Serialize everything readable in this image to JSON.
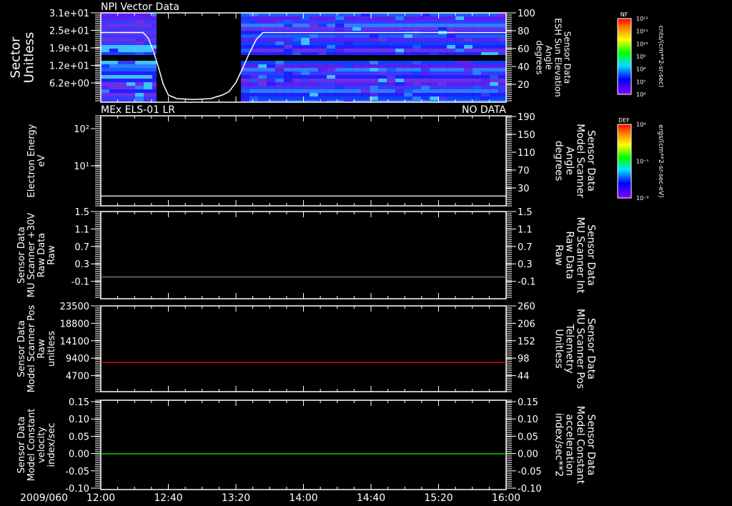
{
  "chart_data": [
    {
      "type": "heatmap",
      "title": "NPI Vector Data",
      "ylabel": [
        "Sector",
        "Unitless"
      ],
      "yticks": [
        "3.1e+01",
        "2.5e+01",
        "1.9e+01",
        "1.2e+01",
        "6.2e+00"
      ],
      "y2label": [
        "Sensor Data",
        "ESH Sun Elevation",
        "Angle",
        "degrees"
      ],
      "y2ticks": [
        100,
        80,
        60,
        40,
        20
      ],
      "y2lim": [
        0,
        100
      ],
      "data_intervals_min": [
        [
          0,
          33
        ],
        [
          83,
          240
        ]
      ],
      "line_series": {
        "name": "ESH Sun Elevation Angle",
        "color": "#ffffff",
        "x_min": [
          0,
          25,
          28,
          31,
          34,
          37,
          40,
          45,
          55,
          65,
          72,
          76,
          80,
          84,
          88,
          92,
          96,
          240
        ],
        "y": [
          78,
          78,
          72,
          58,
          40,
          20,
          8,
          4,
          3,
          4,
          8,
          12,
          22,
          38,
          55,
          70,
          78,
          78
        ]
      },
      "colorbar": {
        "label": "NF",
        "ticks": [
          "10¹²",
          "10¹¹",
          "10¹⁰",
          "10⁹",
          "10⁸",
          "10⁷",
          "10⁶"
        ],
        "units": "cnts/(cm**2-sr-sec)"
      }
    },
    {
      "type": "line",
      "title": "MEx ELS-01 LR",
      "status": "NO DATA",
      "ylabel": [
        "Electron Energy",
        "eV"
      ],
      "yticks": [
        "10²",
        "10¹"
      ],
      "y2label": [
        "Sensor Data",
        "Model Scanner",
        "Angle",
        "degrees"
      ],
      "y2ticks": [
        190,
        150,
        110,
        70,
        30
      ],
      "y2lim": [
        -10,
        194
      ],
      "line_series": {
        "name": "Model Scanner Angle",
        "color": "#ffffff",
        "x_min": [
          0,
          240
        ],
        "y": [
          12,
          12
        ]
      },
      "colorbar": {
        "label": "DEF",
        "ticks": [
          "10⁴",
          "10⁻¹",
          "10⁻⁶"
        ],
        "units": "ergs/(cm**2-sr-sec-eV)"
      }
    },
    {
      "type": "line",
      "ylabel": [
        "Sensor Data",
        "MU Scanner +30V",
        "Raw Data",
        "Raw"
      ],
      "yticks": [
        1.5,
        1.1,
        0.7,
        0.3,
        -0.1
      ],
      "ylim": [
        -0.5,
        1.5
      ],
      "y2label": [
        "Sensor Data",
        "MU Scanner Int",
        "Raw Data",
        "Raw"
      ],
      "y2ticks": [
        1.5,
        1.1,
        0.7,
        0.3,
        -0.1
      ],
      "y2color": "#ff0000",
      "line_series": {
        "name": "MU Scanner Int",
        "color": "#888888",
        "x_min": [
          0,
          240
        ],
        "y": [
          0,
          0
        ]
      }
    },
    {
      "type": "line",
      "ylabel": [
        "Sensor Data",
        "Model Scanner Pos",
        "Raw",
        "unitless"
      ],
      "yticks": [
        23500,
        18800,
        14100,
        9400,
        4700
      ],
      "ylim": [
        0,
        23500
      ],
      "y2label": [
        "Sensor Data",
        "MU Scanner Pos",
        "Telemetry",
        "Unitless"
      ],
      "y2ticks": [
        260,
        206,
        152,
        98,
        44
      ],
      "y2color": "#ff0000",
      "line_series": {
        "name": "MU Scanner Pos Telemetry",
        "color": "#ff0000",
        "x_min": [
          0,
          240
        ],
        "y": [
          8000,
          8000
        ]
      }
    },
    {
      "type": "line",
      "ylabel": [
        "Sensor Data",
        "Model Constant",
        "velocity",
        "index/sec"
      ],
      "yticks": [
        "0.15",
        "0.10",
        "0.05",
        "0.00",
        "-0.05",
        "-0.10"
      ],
      "ylim": [
        -0.1,
        0.15
      ],
      "y2label": [
        "Sensor Data",
        "Model Constant",
        "acceleration",
        "index/sec**2"
      ],
      "y2ticks": [
        "0.15",
        "0.10",
        "0.05",
        "0.00",
        "-0.05",
        "-0.10"
      ],
      "y2color": "#00ff00",
      "line_series": {
        "name": "Model Constant acceleration",
        "color": "#00ff00",
        "x_min": [
          0,
          240
        ],
        "y": [
          0,
          0
        ]
      }
    }
  ],
  "xaxis": {
    "date": "2009/060",
    "ticks": [
      "12:00",
      "12:40",
      "13:20",
      "14:00",
      "14:40",
      "15:20",
      "16:00"
    ]
  }
}
